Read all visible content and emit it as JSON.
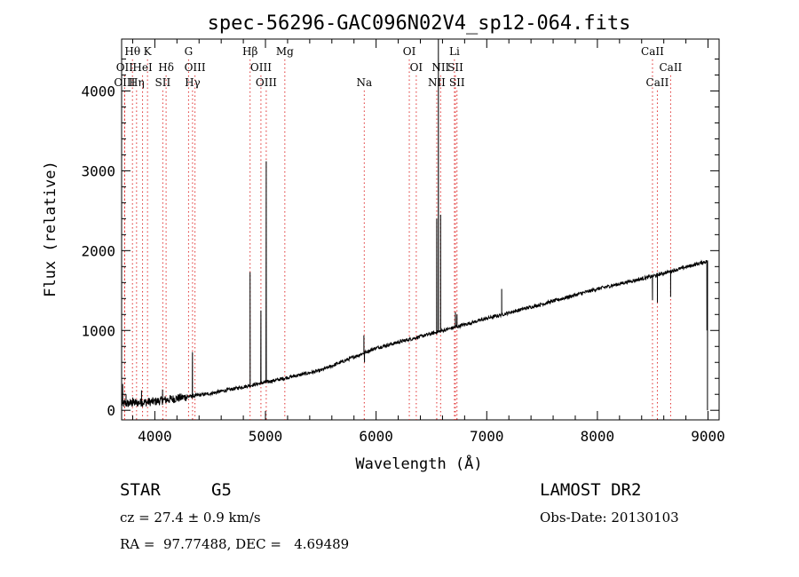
{
  "chart_data": {
    "type": "line",
    "title": "spec-56296-GAC096N02V4_sp12-064.fits",
    "xlabel": "Wavelength (Å)",
    "ylabel": "Flux (relative)",
    "xlim": [
      3700,
      9100
    ],
    "ylim": [
      -120,
      4650
    ],
    "x_ticks": [
      4000,
      5000,
      6000,
      7000,
      8000,
      9000
    ],
    "y_ticks": [
      0,
      1000,
      2000,
      3000,
      4000
    ],
    "grid": false,
    "line_color": "#000000",
    "marker_color": "#e03030",
    "continuum": {
      "x": [
        3700,
        4000,
        4500,
        5000,
        5500,
        6000,
        6500,
        7000,
        7500,
        8000,
        8500,
        9000
      ],
      "y": [
        80,
        110,
        210,
        350,
        500,
        780,
        960,
        1150,
        1330,
        1520,
        1680,
        1870
      ]
    },
    "spikes": [
      {
        "x": 3710,
        "y": 330
      },
      {
        "x": 3740,
        "y": 200
      },
      {
        "x": 3800,
        "y": 160
      },
      {
        "x": 3880,
        "y": 250
      },
      {
        "x": 4070,
        "y": 260
      },
      {
        "x": 4340,
        "y": 730
      },
      {
        "x": 4861,
        "y": 1730
      },
      {
        "x": 4959,
        "y": 1250
      },
      {
        "x": 5007,
        "y": 3120
      },
      {
        "x": 5890,
        "y": 940
      },
      {
        "x": 6548,
        "y": 2400
      },
      {
        "x": 6563,
        "y": 4650
      },
      {
        "x": 6583,
        "y": 2450
      },
      {
        "x": 6717,
        "y": 1230
      },
      {
        "x": 6731,
        "y": 1200
      },
      {
        "x": 7135,
        "y": 1520
      }
    ],
    "dips": [
      {
        "x": 5895,
        "y": 600
      },
      {
        "x": 8498,
        "y": 1380
      },
      {
        "x": 8542,
        "y": 1350
      },
      {
        "x": 8662,
        "y": 1420
      },
      {
        "x": 8990,
        "y": 1000
      },
      {
        "x": 8995,
        "y": 0
      }
    ],
    "lines": [
      {
        "label": "Hθ",
        "x": 3798,
        "row": 0
      },
      {
        "label": "OII",
        "x": 3727,
        "row": 1
      },
      {
        "label": "OIII",
        "x": 3727,
        "row": 2
      },
      {
        "label": "K",
        "x": 3934,
        "row": 0
      },
      {
        "label": "HeI",
        "x": 3889,
        "row": 1
      },
      {
        "label": "Hη",
        "x": 3835,
        "row": 2
      },
      {
        "label": "Hδ",
        "x": 4102,
        "row": 1
      },
      {
        "label": "SII",
        "x": 4072,
        "row": 2
      },
      {
        "label": "G",
        "x": 4305,
        "row": 0
      },
      {
        "label": "OIII",
        "x": 4363,
        "row": 1
      },
      {
        "label": "Hγ",
        "x": 4341,
        "row": 2
      },
      {
        "label": "Hβ",
        "x": 4861,
        "row": 0
      },
      {
        "label": "OIII",
        "x": 4959,
        "row": 1
      },
      {
        "label": "OIII",
        "x": 5007,
        "row": 2
      },
      {
        "label": "Mg",
        "x": 5175,
        "row": 0
      },
      {
        "label": "Na",
        "x": 5893,
        "row": 2
      },
      {
        "label": "OI",
        "x": 6300,
        "row": 0
      },
      {
        "label": "OI",
        "x": 6363,
        "row": 1
      },
      {
        "label": "Li",
        "x": 6708,
        "row": 0
      },
      {
        "label": "NII",
        "x": 6583,
        "row": 1
      },
      {
        "label": "SII",
        "x": 6717,
        "row": 1
      },
      {
        "label": "NII",
        "x": 6548,
        "row": 2
      },
      {
        "label": "SII",
        "x": 6731,
        "row": 2
      },
      {
        "label": "CaII",
        "x": 8498,
        "row": 0
      },
      {
        "label": "CaII",
        "x": 8662,
        "row": 1
      },
      {
        "label": "CaII",
        "x": 8542,
        "row": 2
      }
    ]
  },
  "info": {
    "object_type": "STAR",
    "subclass": "G5",
    "survey": "LAMOST DR2",
    "cz": "cz = 27.4 ± 0.9 km/s",
    "obs_date": "Obs-Date: 20130103",
    "coords": "RA =  97.77488, DEC =   4.69489"
  }
}
